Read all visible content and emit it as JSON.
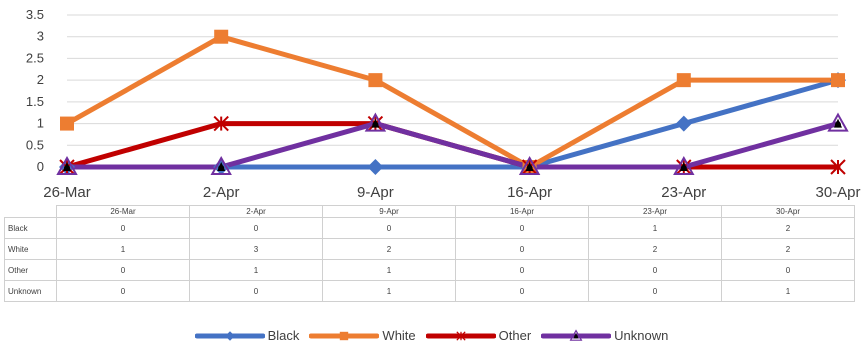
{
  "chart_data": {
    "type": "line",
    "categories": [
      "26-Mar",
      "2-Apr",
      "9-Apr",
      "16-Apr",
      "23-Apr",
      "30-Apr"
    ],
    "ylim": [
      0,
      3.5
    ],
    "yticks": [
      "0",
      "0.5",
      "1",
      "1.5",
      "2",
      "2.5",
      "3",
      "3.5"
    ],
    "grid": true,
    "legend_position": "bottom",
    "data_table": true,
    "series": [
      {
        "name": "Black",
        "values": [
          0,
          0,
          0,
          0,
          1,
          2
        ],
        "color": "#4472C4",
        "marker": "diamond"
      },
      {
        "name": "White",
        "values": [
          1,
          3,
          2,
          0,
          2,
          2
        ],
        "color": "#ED7D31",
        "marker": "square"
      },
      {
        "name": "Other",
        "values": [
          0,
          1,
          1,
          0,
          0,
          0
        ],
        "color": "#C00000",
        "marker": "star"
      },
      {
        "name": "Unknown",
        "values": [
          0,
          0,
          1,
          0,
          0,
          1
        ],
        "color": "#7030A0",
        "marker": "triangle"
      }
    ]
  }
}
